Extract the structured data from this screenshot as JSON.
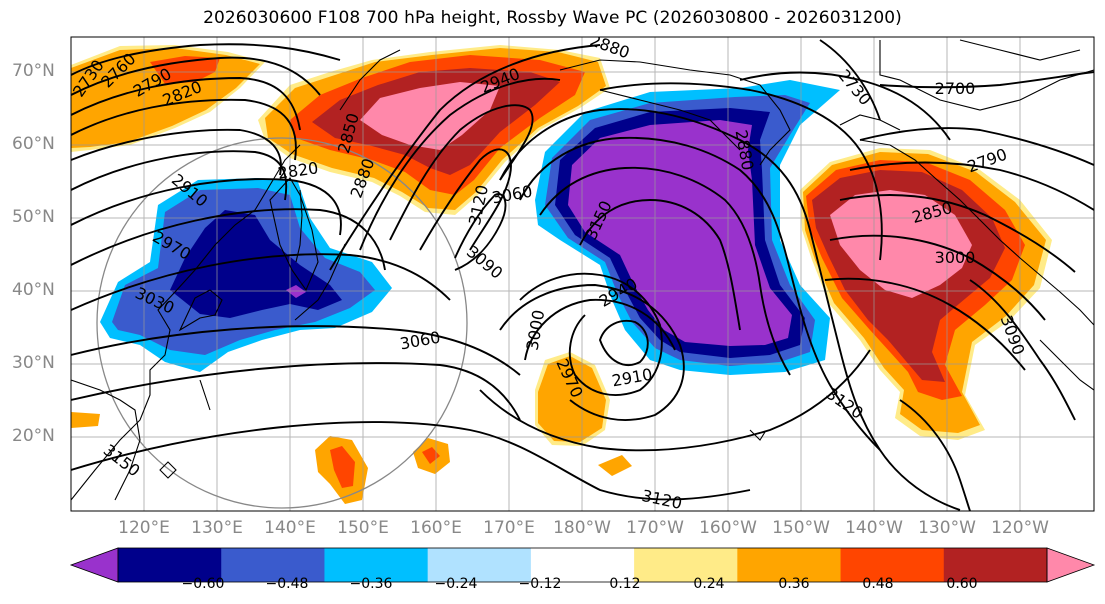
{
  "title": "2026030600 F108 700 hPa height, Rossby Wave PC (2026030800 - 2026031200)",
  "lat_labels": [
    "70°N",
    "60°N",
    "50°N",
    "40°N",
    "30°N",
    "20°N"
  ],
  "lon_labels": [
    "120°E",
    "130°E",
    "140°E",
    "150°E",
    "160°E",
    "170°E",
    "180°W",
    "170°W",
    "160°W",
    "150°W",
    "140°W",
    "130°W",
    "120°W"
  ],
  "colorbar": {
    "ticks": [
      "−0.60",
      "−0.48",
      "−0.36",
      "−0.24",
      "−0.12",
      "0.12",
      "0.24",
      "0.36",
      "0.48",
      "0.60"
    ],
    "colors": [
      "#9932cc",
      "#00008b",
      "#3a5bcd",
      "#00bfff",
      "#b0e2ff",
      "#ffffff",
      "#ffeb88",
      "#ffa500",
      "#ff4500",
      "#b22222",
      "#ff88aa"
    ]
  },
  "contour_labels": [
    {
      "text": "2730"
    },
    {
      "text": "2760"
    },
    {
      "text": "2790"
    },
    {
      "text": "2820"
    },
    {
      "text": "2850"
    },
    {
      "text": "2880"
    },
    {
      "text": "2940"
    },
    {
      "text": "2880"
    },
    {
      "text": "2820"
    },
    {
      "text": "2910"
    },
    {
      "text": "2970"
    },
    {
      "text": "3030"
    },
    {
      "text": "3060"
    },
    {
      "text": "3120"
    },
    {
      "text": "3090"
    },
    {
      "text": "3060"
    },
    {
      "text": "3150"
    },
    {
      "text": "2940"
    },
    {
      "text": "3000"
    },
    {
      "text": "2970"
    },
    {
      "text": "2910"
    },
    {
      "text": "3120"
    },
    {
      "text": "3120"
    },
    {
      "text": "2730"
    },
    {
      "text": "2700"
    },
    {
      "text": "2790"
    },
    {
      "text": "2850"
    },
    {
      "text": "3000"
    },
    {
      "text": "3090"
    },
    {
      "text": "3150"
    },
    {
      "text": "2880"
    }
  ]
}
